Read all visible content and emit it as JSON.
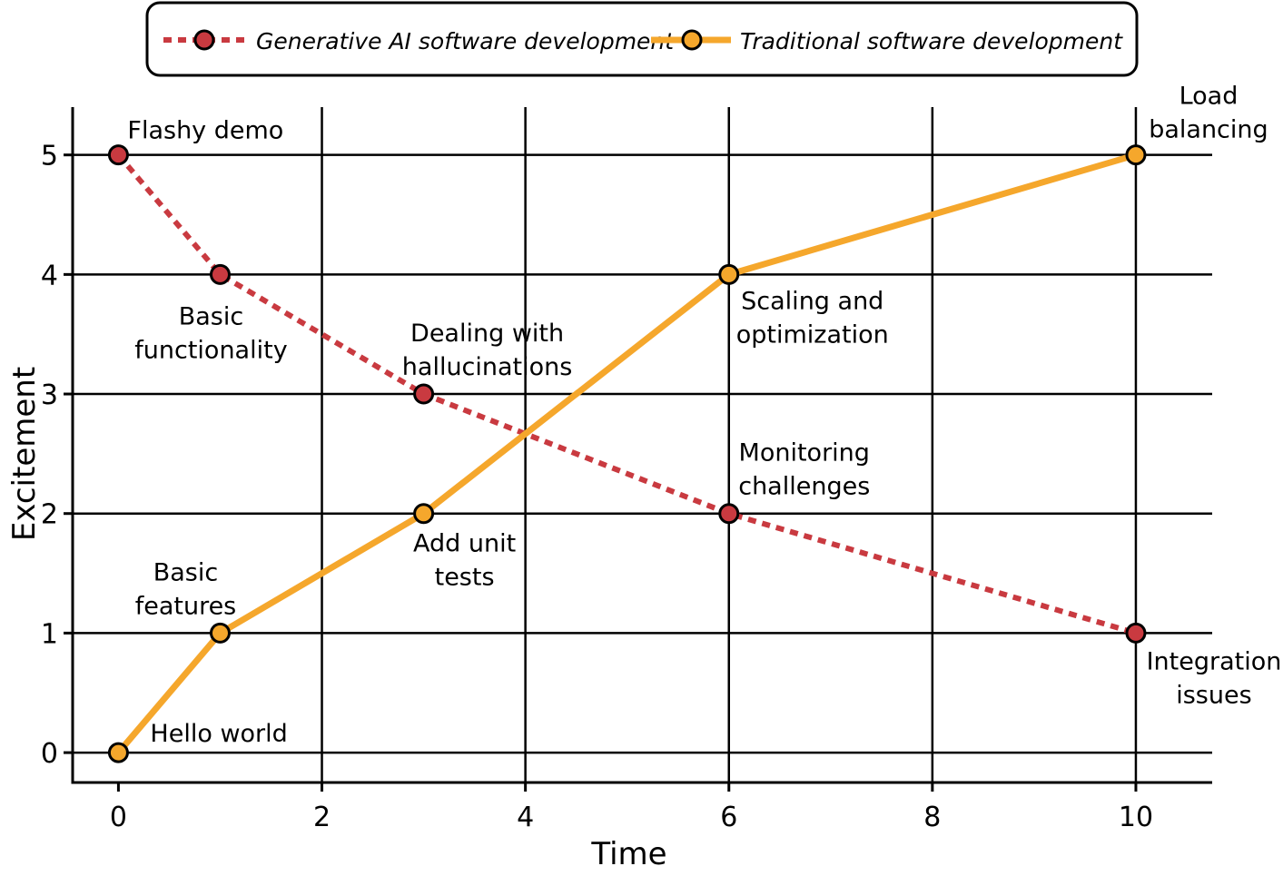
{
  "chart_data": {
    "type": "line",
    "xlabel": "Time",
    "ylabel": "Excitement",
    "xlim": [
      -0.45,
      10.75
    ],
    "ylim": [
      -0.25,
      5.4
    ],
    "x_ticks": [
      0,
      2,
      4,
      6,
      8,
      10
    ],
    "y_ticks": [
      0,
      1,
      2,
      3,
      4,
      5
    ],
    "grid": true,
    "legend_position": "top",
    "series": [
      {
        "name": "Generative AI software development",
        "color": "#c93a40",
        "line_style": "dotted",
        "x": [
          0,
          1,
          3,
          6,
          10
        ],
        "y": [
          5,
          4,
          3,
          2,
          1
        ],
        "point_labels": [
          [
            "Flashy demo"
          ],
          [
            "Basic",
            "functionality"
          ],
          [
            "Dealing with",
            "hallucinations"
          ],
          [
            "Monitoring",
            "challenges"
          ],
          [
            "Integration",
            "issues"
          ]
        ]
      },
      {
        "name": "Traditional software development",
        "color": "#f5a72c",
        "line_style": "solid",
        "x": [
          0,
          1,
          3,
          6,
          10
        ],
        "y": [
          0,
          1,
          2,
          4,
          5
        ],
        "point_labels": [
          [
            "Hello world"
          ],
          [
            "Basic",
            "features"
          ],
          [
            "Add unit",
            "tests"
          ],
          [
            "Scaling and",
            "optimization"
          ],
          [
            "Load",
            "balancing"
          ]
        ]
      }
    ]
  }
}
